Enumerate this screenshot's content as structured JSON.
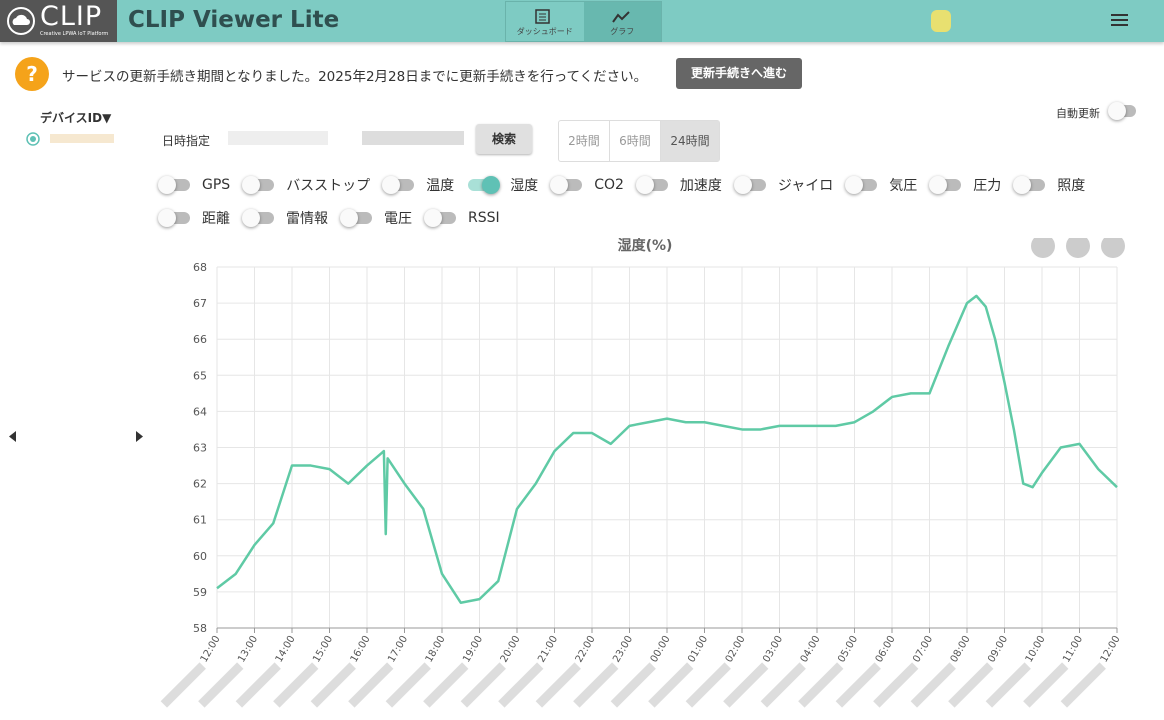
{
  "header": {
    "logo": "CLIP",
    "logo_sub": "Creative LPWA IoT Platform",
    "title": "CLIP Viewer Lite",
    "tabs": [
      "ダッシュボード",
      "グラフ"
    ]
  },
  "notice": {
    "icon": "?",
    "text": "サービスの更新手続き期間となりました。2025年2月28日までに更新手続きを行ってください。",
    "button": "更新手続きへ進む"
  },
  "sidebar": {
    "device_header": "デバイスID▼"
  },
  "controls": {
    "date_label": "日時指定",
    "search": "検索",
    "ranges": [
      "2時間",
      "6時間",
      "24時間"
    ],
    "auto_update": "自動更新"
  },
  "toggles": [
    {
      "label": "GPS",
      "on": false
    },
    {
      "label": "バスストップ",
      "on": false
    },
    {
      "label": "温度",
      "on": false
    },
    {
      "label": "湿度",
      "on": true
    },
    {
      "label": "CO2",
      "on": false
    },
    {
      "label": "加速度",
      "on": false
    },
    {
      "label": "ジャイロ",
      "on": false
    },
    {
      "label": "気圧",
      "on": false
    },
    {
      "label": "圧力",
      "on": false
    },
    {
      "label": "照度",
      "on": false
    },
    {
      "label": "距離",
      "on": false
    },
    {
      "label": "雷情報",
      "on": false
    },
    {
      "label": "電圧",
      "on": false
    },
    {
      "label": "RSSI",
      "on": false
    }
  ],
  "chart_data": {
    "type": "line",
    "title": "湿度(%)",
    "color": "#5fcaa5",
    "grid": true,
    "x": [
      0,
      0.5,
      1,
      1.5,
      2,
      2.5,
      3,
      3.5,
      4,
      4.45,
      4.5,
      4.55,
      5,
      5.5,
      6,
      6.5,
      7,
      7.5,
      8,
      8.5,
      9,
      9.5,
      10,
      10.5,
      11,
      11.5,
      12,
      12.5,
      13,
      13.5,
      14,
      14.5,
      15,
      15.5,
      16,
      16.5,
      17,
      17.5,
      18,
      18.5,
      19,
      19.5,
      20,
      20.25,
      20.5,
      20.75,
      21,
      21.25,
      21.5,
      21.75,
      22,
      22.5,
      23,
      23.5,
      24
    ],
    "values": [
      59.1,
      59.5,
      60.3,
      60.9,
      62.5,
      62.5,
      62.4,
      62.0,
      62.5,
      62.9,
      60.6,
      62.7,
      62.0,
      61.3,
      59.5,
      58.7,
      58.8,
      59.3,
      61.3,
      62.0,
      62.9,
      63.4,
      63.4,
      63.1,
      63.6,
      63.7,
      63.8,
      63.7,
      63.7,
      63.6,
      63.5,
      63.5,
      63.6,
      63.6,
      63.6,
      63.6,
      63.7,
      64.0,
      64.4,
      64.5,
      64.5,
      65.8,
      67.0,
      67.2,
      66.9,
      66.0,
      64.8,
      63.5,
      62.0,
      61.9,
      62.3,
      63.0,
      63.1,
      62.4,
      61.9
    ],
    "xlim": [
      0,
      24
    ],
    "ylim": [
      58,
      68
    ],
    "yticks": [
      58,
      59,
      60,
      61,
      62,
      63,
      64,
      65,
      66,
      67,
      68
    ],
    "xticks": [
      {
        "value": 0,
        "label": "12:00"
      },
      {
        "value": 1,
        "label": "13:00"
      },
      {
        "value": 2,
        "label": "14:00"
      },
      {
        "value": 3,
        "label": "15:00"
      },
      {
        "value": 4,
        "label": "16:00"
      },
      {
        "value": 5,
        "label": "17:00"
      },
      {
        "value": 6,
        "label": "18:00"
      },
      {
        "value": 7,
        "label": "19:00"
      },
      {
        "value": 8,
        "label": "20:00"
      },
      {
        "value": 9,
        "label": "21:00"
      },
      {
        "value": 10,
        "label": "22:00"
      },
      {
        "value": 11,
        "label": "23:00"
      },
      {
        "value": 12,
        "label": "00:00"
      },
      {
        "value": 13,
        "label": "01:00"
      },
      {
        "value": 14,
        "label": "02:00"
      },
      {
        "value": 15,
        "label": "03:00"
      },
      {
        "value": 16,
        "label": "04:00"
      },
      {
        "value": 17,
        "label": "05:00"
      },
      {
        "value": 18,
        "label": "06:00"
      },
      {
        "value": 19,
        "label": "07:00"
      },
      {
        "value": 20,
        "label": "08:00"
      },
      {
        "value": 21,
        "label": "09:00"
      },
      {
        "value": 22,
        "label": "10:00"
      },
      {
        "value": 23,
        "label": "11:00"
      },
      {
        "value": 24,
        "label": "12:00"
      }
    ]
  }
}
